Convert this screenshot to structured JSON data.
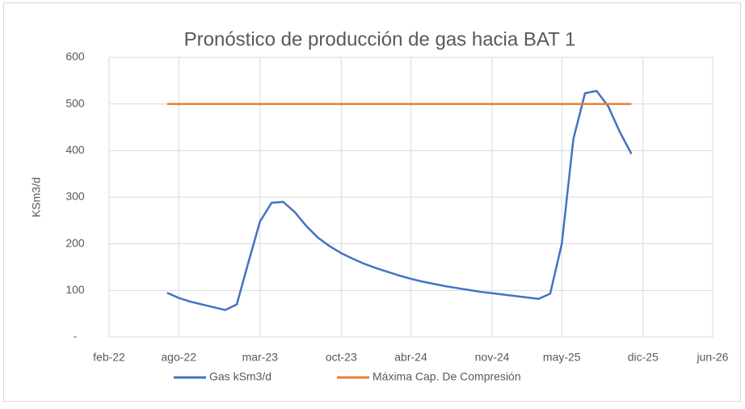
{
  "chart_data": {
    "type": "line",
    "title": "Pronóstico de producción de gas hacia BAT 1",
    "y_label": "KSm3/d",
    "x": [
      "2022-07",
      "2022-08",
      "2022-09",
      "2022-10",
      "2022-11",
      "2022-12",
      "2023-01",
      "2023-02",
      "2023-03",
      "2023-04",
      "2023-05",
      "2023-06",
      "2023-07",
      "2023-08",
      "2023-09",
      "2023-10",
      "2023-11",
      "2023-12",
      "2024-01",
      "2024-02",
      "2024-03",
      "2024-04",
      "2024-05",
      "2024-06",
      "2024-07",
      "2024-08",
      "2024-09",
      "2024-10",
      "2024-11",
      "2024-12",
      "2025-01",
      "2025-02",
      "2025-03",
      "2025-04",
      "2025-05",
      "2025-06",
      "2025-07",
      "2025-08",
      "2025-09",
      "2025-10",
      "2025-11"
    ],
    "series": [
      {
        "name": "Gas kSm3/d",
        "color": "#4472c4",
        "values": [
          95,
          84,
          76,
          70,
          64,
          58,
          70,
          160,
          248,
          288,
          290,
          268,
          238,
          213,
          195,
          180,
          168,
          157,
          148,
          140,
          132,
          125,
          119,
          114,
          109,
          105,
          101,
          97,
          94,
          91,
          88,
          85,
          82,
          93,
          200,
          425,
          523,
          528,
          495,
          440,
          393
        ]
      },
      {
        "name": "Máxima Cap. De Compresión",
        "color": "#ed7d31",
        "values": [
          500,
          500,
          500,
          500,
          500,
          500,
          500,
          500,
          500,
          500,
          500,
          500,
          500,
          500,
          500,
          500,
          500,
          500,
          500,
          500,
          500,
          500,
          500,
          500,
          500,
          500,
          500,
          500,
          500,
          500,
          500,
          500,
          500,
          500,
          500,
          500,
          500,
          500,
          500,
          500,
          500
        ]
      }
    ],
    "xlim": [
      "2022-02",
      "2026-06"
    ],
    "xticks": [
      {
        "value": "2022-02",
        "label": "feb-22"
      },
      {
        "value": "2022-08",
        "label": "ago-22"
      },
      {
        "value": "2023-03",
        "label": "mar-23"
      },
      {
        "value": "2023-10",
        "label": "oct-23"
      },
      {
        "value": "2024-04",
        "label": "abr-24"
      },
      {
        "value": "2024-11",
        "label": "nov-24"
      },
      {
        "value": "2025-05",
        "label": "may-25"
      },
      {
        "value": "2025-12",
        "label": "dic-25"
      },
      {
        "value": "2026-06",
        "label": "jun-26"
      }
    ],
    "ylim": [
      0,
      600
    ],
    "yticks": [
      {
        "value": 0,
        "label": "-"
      },
      100,
      200,
      300,
      400,
      500,
      600
    ],
    "grid": true,
    "legend": "bottom"
  }
}
